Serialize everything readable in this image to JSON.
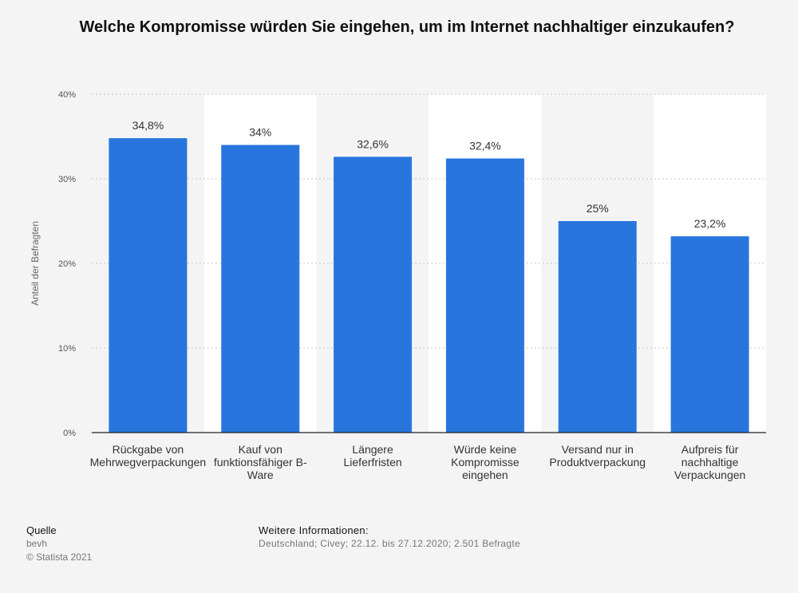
{
  "chart_data": {
    "type": "bar",
    "title": "Welche Kompromisse würden Sie eingehen, um im Internet nachhaltiger einzukaufen?",
    "ylabel": "Anteil der Befragten",
    "xlabel": "",
    "ylim": [
      0,
      40
    ],
    "yticks": [
      "0%",
      "10%",
      "20%",
      "30%",
      "40%"
    ],
    "grid": true,
    "bar_color": "#2876dd",
    "categories": [
      [
        "Rückgabe von",
        "Mehrwegverpackungen"
      ],
      [
        "Kauf von",
        "funktionsfähiger B-",
        "Ware"
      ],
      [
        "Längere",
        "Lieferfristen"
      ],
      [
        "Würde keine",
        "Kompromisse",
        "eingehen"
      ],
      [
        "Versand nur in",
        "Produktverpackung"
      ],
      [
        "Aufpreis für",
        "nachhaltige",
        "Verpackungen"
      ]
    ],
    "values": [
      34.8,
      34,
      32.6,
      32.4,
      25,
      23.2
    ],
    "value_labels": [
      "34,8%",
      "34%",
      "32,6%",
      "32,4%",
      "25%",
      "23,2%"
    ]
  },
  "footer": {
    "source_heading": "Quelle",
    "source": "bevh",
    "copyright": "© Statista 2021",
    "info_heading": "Weitere Informationen:",
    "info": "Deutschland; Civey; 22.12. bis 27.12.2020; 2.501 Befragte"
  }
}
